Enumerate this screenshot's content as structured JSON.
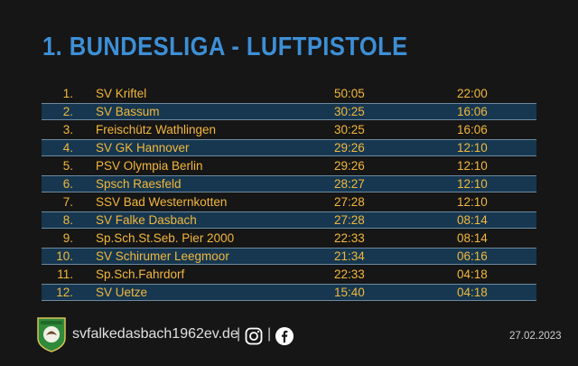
{
  "title": "1. BUNDESLIGA - LUFTPISTOLE",
  "standings": [
    {
      "rank": "1.",
      "team": "SV Kriftel",
      "points": "50:05",
      "score": "22:00"
    },
    {
      "rank": "2.",
      "team": "SV Bassum",
      "points": "30:25",
      "score": "16:06"
    },
    {
      "rank": "3.",
      "team": "Freischütz Wathlingen",
      "points": "30:25",
      "score": "16:06"
    },
    {
      "rank": "4.",
      "team": "SV GK Hannover",
      "points": "29:26",
      "score": "12:10"
    },
    {
      "rank": "5.",
      "team": "PSV Olympia Berlin",
      "points": "29:26",
      "score": "12:10"
    },
    {
      "rank": "6.",
      "team": "Spsch Raesfeld",
      "points": "28:27",
      "score": "12:10"
    },
    {
      "rank": "7.",
      "team": "SSV Bad Westernkotten",
      "points": "27:28",
      "score": "12:10"
    },
    {
      "rank": "8.",
      "team": "SV Falke Dasbach",
      "points": "27:28",
      "score": "08:14"
    },
    {
      "rank": "9.",
      "team": "Sp.Sch.St.Seb. Pier 2000",
      "points": "22:33",
      "score": "08:14"
    },
    {
      "rank": "10.",
      "team": "SV Schirumer Leegmoor",
      "points": "21:34",
      "score": "06:16"
    },
    {
      "rank": "11.",
      "team": "Sp.Sch.Fahrdorf",
      "points": "22:33",
      "score": "04:18"
    },
    {
      "rank": "12.",
      "team": "SV Uetze",
      "points": "15:40",
      "score": "04:18"
    }
  ],
  "footer": {
    "website": "svfalkedasbach1962ev.de",
    "separator": "|",
    "instagram_icon": "instagram-icon",
    "facebook_icon": "facebook-icon",
    "date": "27.02.2023"
  },
  "colors": {
    "title": "#3d8fd6",
    "text": "#f3b73c",
    "row_highlight": "#16374f",
    "background": "#161616"
  }
}
